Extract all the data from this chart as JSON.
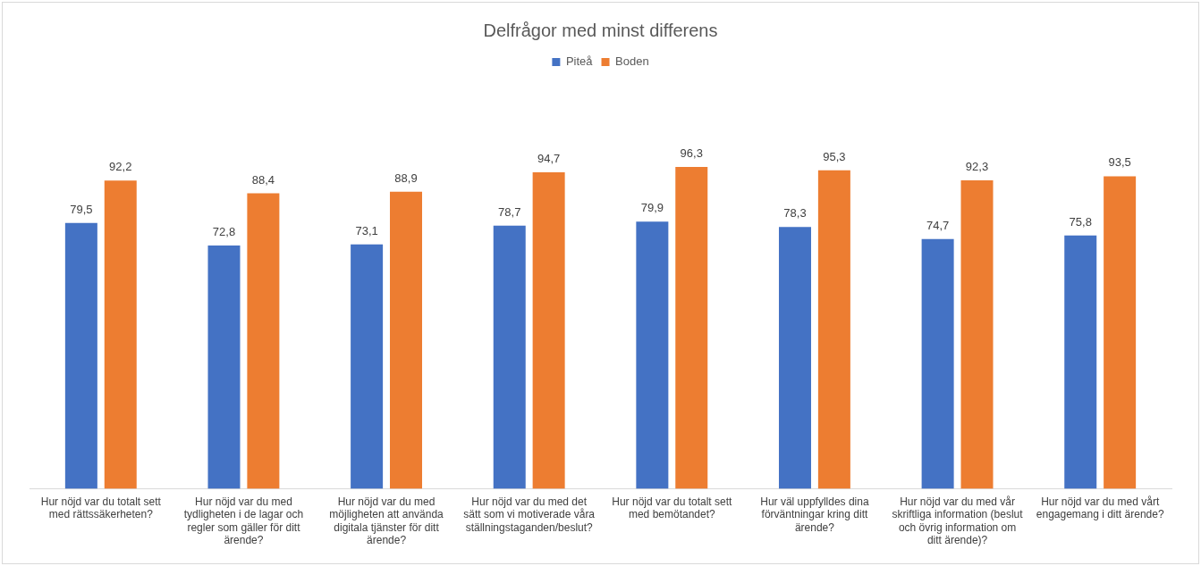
{
  "chart_data": {
    "type": "bar",
    "title": "Delfrågor med minst differens",
    "tick_labels": "x",
    "categories": [
      "Hur nöjd var du totalt sett med rättssäkerheten?",
      "Hur nöjd var du med tydligheten i de lagar och regler som gäller för ditt ärende?",
      "Hur nöjd var du med möjligheten att använda digitala tjänster för ditt ärende?",
      "Hur nöjd var du med det sätt som vi motiverade våra ställningstaganden/beslut?",
      "Hur nöjd var du totalt sett med bemötandet?",
      "Hur väl uppfylldes dina förväntningar kring ditt ärende?",
      "Hur nöjd var du med vår skriftliga information (beslut och övrig information om ditt ärende)?",
      "Hur nöjd var du med vårt engagemang i ditt ärende?"
    ],
    "series": [
      {
        "name": "Piteå",
        "color": "#4472c4",
        "values": [
          79.5,
          72.8,
          73.1,
          78.7,
          79.9,
          78.3,
          74.7,
          75.8
        ],
        "value_labels": [
          "79,5",
          "72,8",
          "73,1",
          "78,7",
          "79,9",
          "78,3",
          "74,7",
          "75,8"
        ]
      },
      {
        "name": "Boden",
        "color": "#ed7d31",
        "values": [
          92.2,
          88.4,
          88.9,
          94.7,
          96.3,
          95.3,
          92.3,
          93.5
        ],
        "value_labels": [
          "92,2",
          "88,4",
          "88,9",
          "94,7",
          "96,3",
          "95,3",
          "92,3",
          "93,5"
        ]
      }
    ],
    "legend": "top",
    "grid": false
  }
}
